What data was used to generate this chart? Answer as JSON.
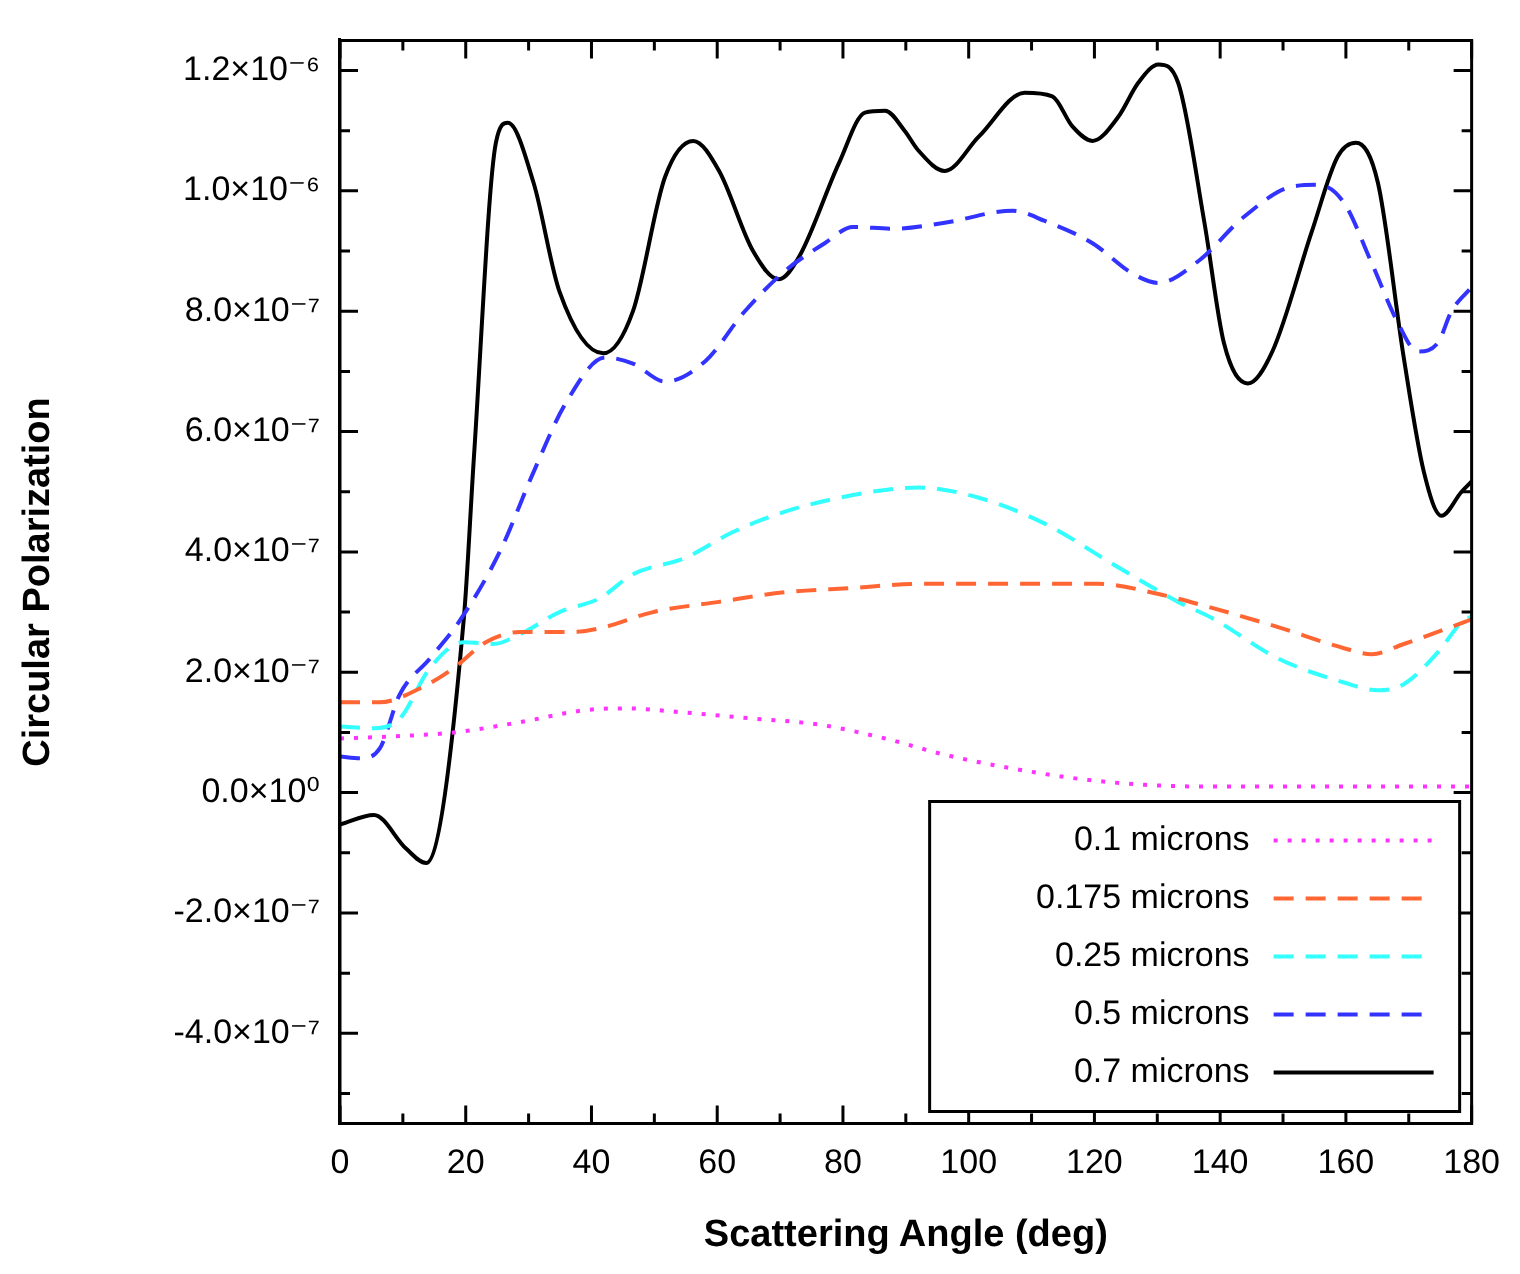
{
  "chart_data": {
    "type": "line",
    "xlabel": "Scattering Angle (deg)",
    "ylabel": "Circular Polarization",
    "xlim": [
      0,
      180
    ],
    "xticks": [
      0,
      {
        "value": 10,
        "label": null
      },
      20,
      {
        "value": 30,
        "label": null
      },
      40,
      {
        "value": 50,
        "label": null
      },
      60,
      {
        "value": 70,
        "label": null
      },
      80,
      {
        "value": 90,
        "label": null
      },
      100,
      {
        "value": 110,
        "label": null
      },
      120,
      {
        "value": 130,
        "label": null
      },
      140,
      {
        "value": 150,
        "label": null
      },
      160,
      {
        "value": 170,
        "label": null
      },
      180
    ],
    "ylim": [
      -5.5e-07,
      1.25e-06
    ],
    "yticks": [
      {
        "value": -5e-07,
        "label": null
      },
      {
        "value": -4e-07,
        "label": "-4.0×10⁻⁷"
      },
      {
        "value": -3e-07,
        "label": null
      },
      {
        "value": -2e-07,
        "label": "-2.0×10⁻⁷"
      },
      {
        "value": -1e-07,
        "label": null
      },
      {
        "value": 0,
        "label": "0.0×10⁰"
      },
      {
        "value": 1e-07,
        "label": null
      },
      {
        "value": 2e-07,
        "label": "2.0×10⁻⁷"
      },
      {
        "value": 3e-07,
        "label": null
      },
      {
        "value": 4e-07,
        "label": "4.0×10⁻⁷"
      },
      {
        "value": 5e-07,
        "label": null
      },
      {
        "value": 6e-07,
        "label": "6.0×10⁻⁷"
      },
      {
        "value": 7e-07,
        "label": null
      },
      {
        "value": 8e-07,
        "label": "8.0×10⁻⁷"
      },
      {
        "value": 9e-07,
        "label": null
      },
      {
        "value": 1e-06,
        "label": "1.0×10⁻⁶"
      },
      {
        "value": 1.1e-06,
        "label": null
      },
      {
        "value": 1.2e-06,
        "label": "1.2×10⁻⁶"
      }
    ],
    "legend": "bottom right",
    "marker": "none",
    "series": [
      {
        "name": "0.1 microns",
        "color": "#ff33ff",
        "line_style": "dotted",
        "x": [
          0,
          7.6,
          18.1,
          28.6,
          39,
          45.4,
          54.9,
          65.7,
          76.2,
          86.7,
          96.2,
          107,
          117.5,
          128,
          138.7,
          180
        ],
        "values": [
          9e-08,
          9.3e-08,
          1e-07,
          1.17e-07,
          1.37e-07,
          1.4e-07,
          1.33e-07,
          1.23e-07,
          1.13e-07,
          9e-08,
          6.3e-08,
          4e-08,
          2.3e-08,
          1.3e-08,
          1e-08,
          1e-08
        ]
      },
      {
        "name": "0.175 microns",
        "color": "#ff6633",
        "line_style": "dashed",
        "x": [
          0,
          6.3,
          12.7,
          18.1,
          23.2,
          28.6,
          37.1,
          41.3,
          49.8,
          60.3,
          70.8,
          81.6,
          92,
          107,
          120.6,
          130.2,
          138.7,
          149.2,
          159.7,
          164.1,
          169.2,
          174.6,
          180
        ],
        "values": [
          1.5e-07,
          1.5e-07,
          1.73e-07,
          2.07e-07,
          2.5e-07,
          2.67e-07,
          2.67e-07,
          2.73e-07,
          3e-07,
          3.17e-07,
          3.33e-07,
          3.4e-07,
          3.47e-07,
          3.47e-07,
          3.47e-07,
          3.3e-07,
          3.07e-07,
          2.75e-07,
          2.4e-07,
          2.3e-07,
          2.47e-07,
          2.67e-07,
          2.88e-07
        ]
      },
      {
        "name": "0.25 microns",
        "color": "#33ffff",
        "line_style": "dashed",
        "x": [
          0,
          5.4,
          9.5,
          14.3,
          19.7,
          24.4,
          28.6,
          34.9,
          41.3,
          46.6,
          54.9,
          62.5,
          70.8,
          79.4,
          86.7,
          92,
          101.6,
          112.1,
          122.9,
          133.3,
          138.7,
          149.2,
          159.7,
          165.1,
          169.2,
          174.6,
          178.4,
          180
        ],
        "values": [
          1.1e-07,
          1.07e-07,
          1.23e-07,
          2.07e-07,
          2.5e-07,
          2.47e-07,
          2.63e-07,
          3e-07,
          3.23e-07,
          3.63e-07,
          3.9e-07,
          4.33e-07,
          4.67e-07,
          4.9e-07,
          5.03e-07,
          5.07e-07,
          4.9e-07,
          4.47e-07,
          3.8e-07,
          3.17e-07,
          2.9e-07,
          2.23e-07,
          1.83e-07,
          1.7e-07,
          1.8e-07,
          2.33e-07,
          2.83e-07,
          2.93e-07
        ]
      },
      {
        "name": "0.5 microns",
        "color": "#3333ff",
        "line_style": "dashed",
        "x": [
          0,
          3.2,
          6.3,
          9.5,
          14.3,
          19,
          25.4,
          30.8,
          35.9,
          42.2,
          46.6,
          51.7,
          58.1,
          64.4,
          70.8,
          77.1,
          81.6,
          87.9,
          96.2,
          107,
          112.1,
          119.7,
          126,
          130.2,
          136.5,
          143.8,
          151.4,
          155.6,
          159.7,
          164.1,
          168.3,
          171.4,
          174.6,
          176.8,
          180
        ],
        "values": [
          6e-08,
          5.7e-08,
          7.3e-08,
          1.63e-07,
          2.23e-07,
          2.85e-07,
          4e-07,
          5.33e-07,
          6.47e-07,
          7.23e-07,
          7.13e-07,
          6.83e-07,
          7.17e-07,
          8e-07,
          8.67e-07,
          9.13e-07,
          9.4e-07,
          9.37e-07,
          9.47e-07,
          9.67e-07,
          9.5e-07,
          9.13e-07,
          8.63e-07,
          8.47e-07,
          8.83e-07,
          9.57e-07,
          1.007e-06,
          1.01e-06,
          9.8e-07,
          8.8e-07,
          7.8e-07,
          7.33e-07,
          7.47e-07,
          8e-07,
          8.4e-07
        ]
      },
      {
        "name": "0.7 microns",
        "color": "#000000",
        "line_style": "solid",
        "x": [
          0,
          5.4,
          10.5,
          13.7,
          19.7,
          21.3,
          24.8,
          26.7,
          30.8,
          34.9,
          41.9,
          46.6,
          51.7,
          56.2,
          60.3,
          65.7,
          69.8,
          73,
          79.4,
          83.5,
          86.7,
          89.8,
          92,
          96.2,
          101.6,
          108.9,
          113.3,
          116.5,
          119.7,
          123.8,
          127,
          130.2,
          133.3,
          137.5,
          140.6,
          144.4,
          148.3,
          154.6,
          158.7,
          161.6,
          165.1,
          169.2,
          172.4,
          175.2,
          178.4,
          180
        ],
        "values": [
          -5.3e-08,
          -3.7e-08,
          -9.3e-08,
          -1.17e-07,
          2.9e-07,
          5.57e-07,
          1.08e-06,
          1.113e-06,
          1.013e-06,
          8.33e-07,
          7.3e-07,
          8e-07,
          1.023e-06,
          1.083e-06,
          1.033e-06,
          9e-07,
          8.53e-07,
          8.9e-07,
          1.047e-06,
          1.13e-06,
          1.133e-06,
          1.1e-06,
          1.067e-06,
          1.033e-06,
          1.09e-06,
          1.163e-06,
          1.157e-06,
          1.107e-06,
          1.083e-06,
          1.123e-06,
          1.18e-06,
          1.21e-06,
          1.18e-06,
          9.47e-07,
          7.47e-07,
          6.8e-07,
          7.33e-07,
          9.33e-07,
          1.057e-06,
          1.08e-06,
          1.013e-06,
          7.23e-07,
          5.33e-07,
          4.6e-07,
          5e-07,
          5.17e-07
        ]
      }
    ]
  }
}
